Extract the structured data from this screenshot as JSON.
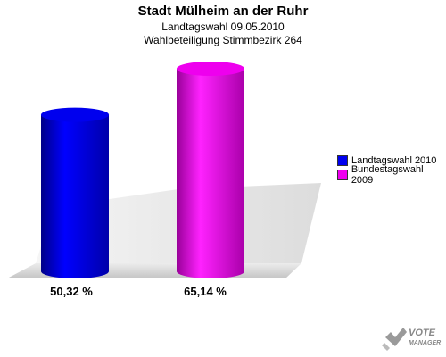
{
  "title": "Stadt Mülheim an der Ruhr",
  "subtitle1": "Landtagswahl 09.05.2010",
  "subtitle2": "Wahlbeteiligung Stimmbezirk 264",
  "chart_data": {
    "type": "bar",
    "title": "Stadt Mülheim an der Ruhr",
    "categories": [
      "Landtagswahl 2010",
      "Bundestagswahl 2009"
    ],
    "values": [
      50.32,
      65.14
    ],
    "value_labels": [
      "50,32 %",
      "65,14 %"
    ],
    "colors": [
      "#0000ee",
      "#ee00ee"
    ],
    "legend_position": "right",
    "ylim": [
      0,
      70
    ]
  },
  "legend": [
    {
      "label": "Landtagswahl 2010",
      "color": "#0000ee"
    },
    {
      "label": "Bundestagswahl 2009",
      "color": "#ee00ee"
    }
  ],
  "brand": {
    "line1": "VOTE",
    "line2": "MANAGER",
    "icon": "vote-check-icon"
  }
}
